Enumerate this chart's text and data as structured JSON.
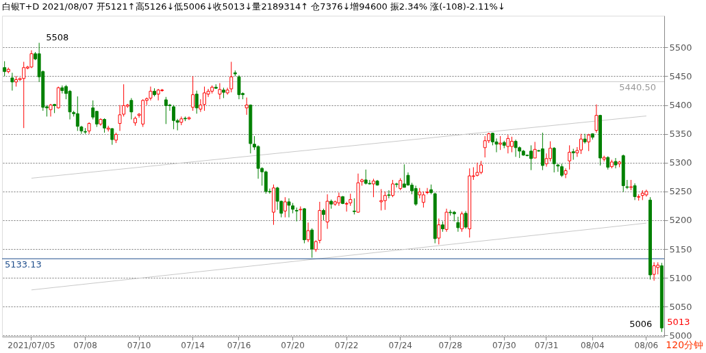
{
  "chart_data": {
    "type": "candlestick",
    "title": "白银T+D 2021/08/07 开5121↑高5126↓低5006↓收5013↓量2189314↑ 仓7376↓增94600 振2.34% 涨(-108)-2.11%↓",
    "categories": [
      null,
      null,
      null,
      null,
      null,
      null,
      null,
      "2021/07/05",
      null,
      null,
      null,
      null,
      null,
      null,
      null,
      null,
      null,
      null,
      null,
      null,
      null,
      "07/08",
      null,
      null,
      null,
      null,
      null,
      null,
      null,
      null,
      null,
      null,
      null,
      null,
      null,
      "07/10",
      null,
      null,
      null,
      null,
      null,
      null,
      null,
      null,
      null,
      null,
      null,
      null,
      null,
      "07/14",
      null,
      null,
      null,
      null,
      null,
      null,
      null,
      null,
      null,
      null,
      null,
      "07/16",
      null,
      null,
      null,
      null,
      null,
      null,
      null,
      null,
      null,
      null,
      null,
      null,
      null,
      "07/20",
      null,
      null,
      null,
      null,
      null,
      null,
      null,
      null,
      null,
      null,
      null,
      null,
      null,
      "07/22",
      null,
      null,
      null,
      null,
      null,
      null,
      null,
      null,
      null,
      null,
      null,
      null,
      null,
      "07/24",
      null,
      null,
      null,
      null,
      null,
      null,
      null,
      null,
      null,
      null,
      null,
      null,
      "07/28",
      null,
      null,
      null,
      null,
      null,
      null,
      null,
      null,
      null,
      null,
      null,
      null,
      null,
      "07/30",
      null,
      null,
      null,
      null,
      null,
      null,
      null,
      null,
      null,
      null,
      "07/31",
      null,
      null,
      null,
      null,
      null,
      null,
      null,
      null,
      null,
      null,
      null,
      "08/04",
      null,
      null,
      null,
      null,
      null,
      null,
      null,
      null,
      null,
      null,
      null,
      null,
      null,
      "08/06",
      null,
      null,
      null,
      null
    ],
    "ohlc": [
      [
        5465,
        5476,
        5450,
        5458
      ],
      [
        5458,
        5465,
        5455,
        5462
      ],
      [
        5447,
        5456,
        5425,
        5440
      ],
      [
        5440,
        5450,
        5432,
        5444
      ],
      [
        5444,
        5448,
        5442,
        5446
      ],
      [
        5446,
        5475,
        5360,
        5465
      ],
      [
        5464,
        5468,
        5462,
        5466
      ],
      [
        5466,
        5495,
        5464,
        5489
      ],
      [
        5489,
        5492,
        5478,
        5480
      ],
      [
        5489,
        5508,
        5440,
        5449
      ],
      [
        5458,
        5460,
        5390,
        5396
      ],
      [
        5397,
        5400,
        5380,
        5395
      ],
      [
        5392,
        5402,
        5380,
        5400
      ],
      [
        5401,
        5402,
        5386,
        5399
      ],
      [
        5395,
        5432,
        5394,
        5430
      ],
      [
        5430,
        5434,
        5420,
        5425
      ],
      [
        5432,
        5435,
        5410,
        5420
      ],
      [
        5424,
        5426,
        5375,
        5388
      ],
      [
        5387,
        5390,
        5380,
        5385
      ],
      [
        5385,
        5415,
        5355,
        5363
      ],
      [
        5362,
        5364,
        5350,
        5355
      ],
      [
        5354,
        5360,
        5350,
        5353
      ],
      [
        5355,
        5370,
        5350,
        5368
      ],
      [
        5395,
        5408,
        5375,
        5379
      ],
      [
        5389,
        5390,
        5362,
        5367
      ],
      [
        5367,
        5377,
        5364,
        5375
      ],
      [
        5375,
        5377,
        5352,
        5360
      ],
      [
        5358,
        5364,
        5354,
        5360
      ],
      [
        5359,
        5360,
        5331,
        5340
      ],
      [
        5339,
        5352,
        5334,
        5349
      ],
      [
        5368,
        5400,
        5355,
        5383
      ],
      [
        5384,
        5436,
        5380,
        5399
      ],
      [
        5398,
        5402,
        5395,
        5400
      ],
      [
        5408,
        5412,
        5375,
        5388
      ],
      [
        5369,
        5380,
        5364,
        5377
      ],
      [
        5382,
        5386,
        5378,
        5384
      ],
      [
        5367,
        5410,
        5362,
        5408
      ],
      [
        5408,
        5413,
        5400,
        5411
      ],
      [
        5412,
        5432,
        5408,
        5424
      ],
      [
        5424,
        5429,
        5415,
        5418
      ],
      [
        5419,
        5428,
        5408,
        5426
      ],
      [
        5425,
        5428,
        5423,
        5426
      ],
      [
        5409,
        5414,
        5367,
        5399
      ],
      [
        5400,
        5402,
        5390,
        5399
      ],
      [
        5397,
        5400,
        5358,
        5373
      ],
      [
        5373,
        5376,
        5356,
        5370
      ],
      [
        5370,
        5380,
        5365,
        5376
      ],
      [
        5377,
        5380,
        5372,
        5376
      ],
      [
        5376,
        5380,
        5374,
        5378
      ],
      [
        5396,
        5450,
        5390,
        5418
      ],
      [
        5419,
        5425,
        5385,
        5395
      ],
      [
        5393,
        5410,
        5388,
        5400
      ],
      [
        5401,
        5432,
        5390,
        5421
      ],
      [
        5419,
        5428,
        5414,
        5424
      ],
      [
        5424,
        5434,
        5420,
        5431
      ],
      [
        5431,
        5436,
        5428,
        5429
      ],
      [
        5419,
        5438,
        5410,
        5427
      ],
      [
        5426,
        5430,
        5412,
        5422
      ],
      [
        5421,
        5430,
        5418,
        5426
      ],
      [
        5428,
        5475,
        5422,
        5449
      ],
      [
        5456,
        5460,
        5450,
        5454
      ],
      [
        5449,
        5452,
        5410,
        5418
      ],
      [
        5420,
        5422,
        5410,
        5418
      ],
      [
        5395,
        5413,
        5383,
        5400
      ],
      [
        5400,
        5401,
        5316,
        5333
      ],
      [
        5332,
        5346,
        5322,
        5327
      ],
      [
        5328,
        5330,
        5272,
        5290
      ],
      [
        5290,
        5292,
        5260,
        5284
      ],
      [
        5284,
        5286,
        5246,
        5250
      ],
      [
        5250,
        5255,
        5246,
        5249
      ],
      [
        5214,
        5262,
        5192,
        5256
      ],
      [
        5256,
        5258,
        5218,
        5233
      ],
      [
        5233,
        5234,
        5205,
        5212
      ],
      [
        5216,
        5240,
        5205,
        5232
      ],
      [
        5232,
        5238,
        5205,
        5226
      ],
      [
        5225,
        5230,
        5212,
        5219
      ],
      [
        5217,
        5222,
        5198,
        5216
      ],
      [
        5218,
        5224,
        5200,
        5219
      ],
      [
        5220,
        5221,
        5160,
        5166
      ],
      [
        5166,
        5196,
        5162,
        5182
      ],
      [
        5183,
        5186,
        5135,
        5150
      ],
      [
        5149,
        5165,
        5145,
        5163
      ],
      [
        5165,
        5232,
        5160,
        5217
      ],
      [
        5217,
        5220,
        5200,
        5210
      ],
      [
        5197,
        5245,
        5185,
        5233
      ],
      [
        5233,
        5236,
        5220,
        5228
      ],
      [
        5228,
        5234,
        5225,
        5232
      ],
      [
        5230,
        5248,
        5225,
        5241
      ],
      [
        5241,
        5242,
        5228,
        5229
      ],
      [
        5228,
        5232,
        5215,
        5229
      ],
      [
        5230,
        5246,
        5225,
        5236
      ],
      [
        5216,
        5238,
        5210,
        5215
      ],
      [
        5214,
        5281,
        5213,
        5265
      ],
      [
        5267,
        5272,
        5260,
        5270
      ],
      [
        5270,
        5288,
        5262,
        5264
      ],
      [
        5264,
        5270,
        5262,
        5263
      ],
      [
        5263,
        5272,
        5240,
        5268
      ],
      [
        5268,
        5270,
        5260,
        5261
      ],
      [
        5232,
        5254,
        5217,
        5234
      ],
      [
        5234,
        5250,
        5218,
        5243
      ],
      [
        5244,
        5252,
        5238,
        5243
      ],
      [
        5243,
        5270,
        5240,
        5263
      ],
      [
        5263,
        5265,
        5257,
        5262
      ],
      [
        5255,
        5273,
        5252,
        5269
      ],
      [
        5263,
        5297,
        5257,
        5257
      ],
      [
        5278,
        5283,
        5260,
        5261
      ],
      [
        5261,
        5265,
        5245,
        5251
      ],
      [
        5255,
        5260,
        5225,
        5228
      ],
      [
        5244,
        5256,
        5238,
        5249
      ],
      [
        5231,
        5250,
        5222,
        5244
      ],
      [
        5248,
        5256,
        5245,
        5249
      ],
      [
        5253,
        5262,
        5245,
        5248
      ],
      [
        5246,
        5248,
        5160,
        5168
      ],
      [
        5169,
        5203,
        5158,
        5192
      ],
      [
        5192,
        5198,
        5180,
        5185
      ],
      [
        5184,
        5220,
        5180,
        5214
      ],
      [
        5214,
        5218,
        5208,
        5213
      ],
      [
        5214,
        5216,
        5198,
        5211
      ],
      [
        5196,
        5206,
        5180,
        5187
      ],
      [
        5185,
        5215,
        5180,
        5211
      ],
      [
        5212,
        5216,
        5185,
        5188
      ],
      [
        5185,
        5290,
        5170,
        5277
      ],
      [
        5276,
        5292,
        5270,
        5277
      ],
      [
        5278,
        5300,
        5276,
        5283
      ],
      [
        5283,
        5303,
        5280,
        5296
      ],
      [
        5326,
        5346,
        5309,
        5338
      ],
      [
        5338,
        5352,
        5334,
        5350
      ],
      [
        5351,
        5352,
        5330,
        5336
      ],
      [
        5336,
        5342,
        5318,
        5332
      ],
      [
        5332,
        5346,
        5322,
        5334
      ],
      [
        5335,
        5338,
        5325,
        5330
      ],
      [
        5328,
        5348,
        5316,
        5342
      ],
      [
        5328,
        5345,
        5318,
        5337
      ],
      [
        5337,
        5340,
        5310,
        5326
      ],
      [
        5326,
        5328,
        5308,
        5320
      ],
      [
        5320,
        5322,
        5312,
        5313
      ],
      [
        5313,
        5314,
        5311,
        5312
      ],
      [
        5320,
        5330,
        5287,
        5307
      ],
      [
        5308,
        5336,
        5308,
        5323
      ],
      [
        5321,
        5322,
        5319,
        5320
      ],
      [
        5324,
        5352,
        5287,
        5295
      ],
      [
        5298,
        5316,
        5293,
        5307
      ],
      [
        5307,
        5337,
        5302,
        5325
      ],
      [
        5325,
        5327,
        5283,
        5298
      ],
      [
        5296,
        5298,
        5284,
        5294
      ],
      [
        5293,
        5298,
        5275,
        5278
      ],
      [
        5280,
        5290,
        5273,
        5286
      ],
      [
        5303,
        5330,
        5288,
        5318
      ],
      [
        5319,
        5324,
        5305,
        5317
      ],
      [
        5317,
        5327,
        5310,
        5321
      ],
      [
        5322,
        5350,
        5315,
        5341
      ],
      [
        5341,
        5350,
        5333,
        5336
      ],
      [
        5336,
        5350,
        5320,
        5348
      ],
      [
        5350,
        5351,
        5340,
        5344
      ],
      [
        5356,
        5401,
        5352,
        5382
      ],
      [
        5382,
        5383,
        5295,
        5308
      ],
      [
        5306,
        5312,
        5302,
        5309
      ],
      [
        5309,
        5311,
        5288,
        5292
      ],
      [
        5293,
        5305,
        5290,
        5301
      ],
      [
        5302,
        5308,
        5290,
        5296
      ],
      [
        5298,
        5303,
        5292,
        5301
      ],
      [
        5312,
        5314,
        5249,
        5260
      ],
      [
        5258,
        5270,
        5254,
        5257
      ],
      [
        5257,
        5270,
        5252,
        5258
      ],
      [
        5260,
        5264,
        5235,
        5241
      ],
      [
        5240,
        5245,
        5234,
        5241
      ],
      [
        5243,
        5252,
        5235,
        5247
      ],
      [
        5244,
        5253,
        5241,
        5250
      ],
      [
        5235,
        5240,
        5097,
        5105
      ],
      [
        5106,
        5127,
        5095,
        5121
      ],
      [
        5118,
        5127,
        5106,
        5122
      ],
      [
        5121,
        5126,
        5006,
        5013
      ]
    ],
    "colors": [
      "#008000",
      "#ff0000",
      "#008000",
      "#ff0000",
      "#ff0000",
      "#ff0000",
      "#ff0000",
      "#ff0000",
      "#008000",
      "#008000",
      "#008000",
      "#008000",
      "#ff0000",
      "#008000",
      "#ff0000",
      "#008000",
      "#008000",
      "#008000",
      "#008000",
      "#008000",
      "#008000",
      "#008000",
      "#ff0000",
      "#008000",
      "#008000",
      "#ff0000",
      "#008000",
      "#ff0000",
      "#008000",
      "#ff0000",
      "#ff0000",
      "#ff0000",
      "#ff0000",
      "#008000",
      "#ff0000",
      "#ff0000",
      "#ff0000",
      "#ff0000",
      "#ff0000",
      "#008000",
      "#ff0000",
      "#ff0000",
      "#008000",
      "#008000",
      "#008000",
      "#008000",
      "#ff0000",
      "#008000",
      "#ff0000",
      "#ff0000",
      "#008000",
      "#ff0000",
      "#ff0000",
      "#ff0000",
      "#ff0000",
      "#008000",
      "#ff0000",
      "#008000",
      "#ff0000",
      "#ff0000",
      "#008000",
      "#008000",
      "#008000",
      "#ff0000",
      "#008000",
      "#008000",
      "#008000",
      "#008000",
      "#008000",
      "#008000",
      "#ff0000",
      "#008000",
      "#008000",
      "#ff0000",
      "#008000",
      "#008000",
      "#008000",
      "#ff0000",
      "#008000",
      "#ff0000",
      "#008000",
      "#ff0000",
      "#ff0000",
      "#008000",
      "#ff0000",
      "#008000",
      "#ff0000",
      "#ff0000",
      "#008000",
      "#ff0000",
      "#ff0000",
      "#008000",
      "#ff0000",
      "#ff0000",
      "#008000",
      "#008000",
      "#ff0000",
      "#008000",
      "#ff0000",
      "#ff0000",
      "#008000",
      "#ff0000",
      "#008000",
      "#ff0000",
      "#008000",
      "#008000",
      "#008000",
      "#008000",
      "#ff0000",
      "#ff0000",
      "#ff0000",
      "#008000",
      "#008000",
      "#ff0000",
      "#008000",
      "#ff0000",
      "#008000",
      "#008000",
      "#008000",
      "#ff0000",
      "#008000",
      "#ff0000",
      "#ff0000",
      "#ff0000",
      "#ff0000",
      "#ff0000",
      "#ff0000",
      "#008000",
      "#008000",
      "#ff0000",
      "#008000",
      "#ff0000",
      "#ff0000",
      "#008000",
      "#008000",
      "#008000",
      "#008000",
      "#008000",
      "#ff0000",
      "#008000",
      "#008000",
      "#ff0000",
      "#ff0000",
      "#008000",
      "#008000",
      "#008000",
      "#ff0000",
      "#ff0000",
      "#008000",
      "#ff0000",
      "#ff0000",
      "#008000",
      "#ff0000",
      "#008000",
      "#ff0000",
      "#008000",
      "#ff0000",
      "#008000",
      "#ff0000",
      "#008000",
      "#ff0000",
      "#008000",
      "#008000",
      "#ff0000",
      "#008000",
      "#ff0000",
      "#ff0000",
      "#ff0000",
      "#008000",
      "#ff0000",
      "#ff0000",
      "#008000"
    ],
    "series": [
      {
        "type": "line",
        "color": "#c8c8c8",
        "x": [
          "2021/07/05",
          "08/06"
        ],
        "values": [
          5273,
          5381
        ]
      },
      {
        "type": "line",
        "color": "#c8c8c8",
        "x": [
          "2021/07/05",
          "08/06"
        ],
        "values": [
          5079,
          5195
        ]
      }
    ],
    "ylim": [
      4998,
      5555
    ],
    "yticks": [
      5000,
      5050,
      5100,
      5150,
      5200,
      5250,
      5300,
      5350,
      5400,
      5450,
      5500
    ],
    "grid": "y",
    "ref_lines": [
      {
        "axis": "y",
        "value": 5440.5,
        "label": "5440.50",
        "color": "#c8c8c8"
      },
      {
        "axis": "y",
        "value": 5133.13,
        "label": "5133.13",
        "color": "#1f4e8c"
      }
    ],
    "annotations": [
      "5508",
      "5006",
      "5013",
      "120分钟"
    ]
  }
}
